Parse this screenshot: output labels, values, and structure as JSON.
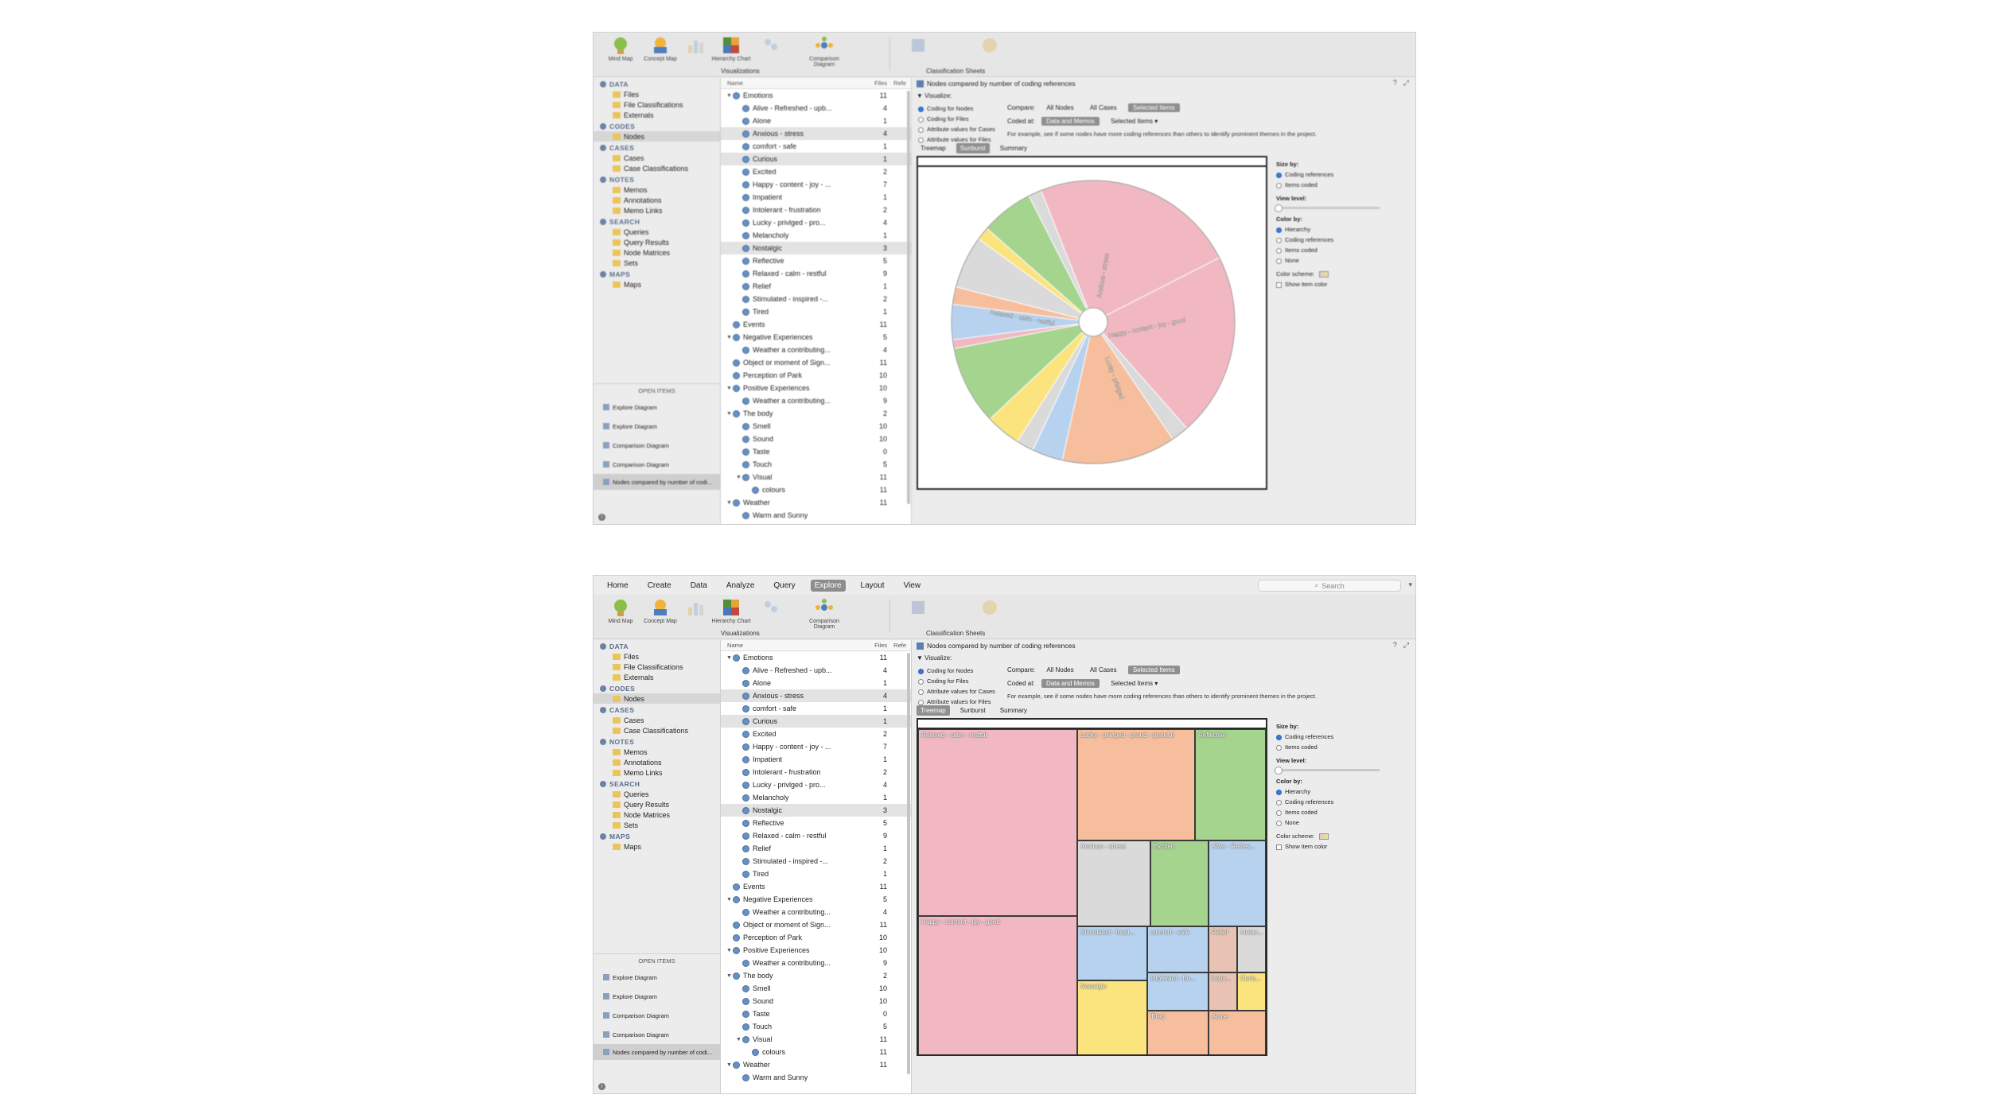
{
  "menu": [
    "Home",
    "Create",
    "Data",
    "Analyze",
    "Query",
    "Explore",
    "Layout",
    "View"
  ],
  "search_placeholder": "Search",
  "ribbon": {
    "buttons": [
      "Mind Map",
      "Concept Map",
      "Chart",
      "Hierarchy Chart",
      "Cluster Analysis",
      "Comparison Diagram"
    ],
    "group_visualizations": "Visualizations",
    "group_classification": "Classification Sheets"
  },
  "nav": {
    "data": {
      "title": "DATA",
      "items": [
        "Files",
        "File Classifications",
        "Externals"
      ]
    },
    "codes": {
      "title": "CODES",
      "items": [
        "Nodes"
      ]
    },
    "cases": {
      "title": "CASES",
      "items": [
        "Cases",
        "Case Classifications"
      ]
    },
    "notes": {
      "title": "NOTES",
      "items": [
        "Memos",
        "Annotations",
        "Memo Links"
      ]
    },
    "search": {
      "title": "SEARCH",
      "items": [
        "Queries",
        "Query Results",
        "Node Matrices",
        "Sets"
      ]
    },
    "maps": {
      "title": "MAPS",
      "items": [
        "Maps"
      ]
    }
  },
  "open_items": {
    "title": "OPEN ITEMS",
    "items": [
      "Explore Diagram",
      "Explore Diagram",
      "Comparison Diagram",
      "Comparison Diagram",
      "Nodes compared by number of codi..."
    ]
  },
  "list": {
    "col_name": "Name",
    "col_files": "Files",
    "col_refs": "Refe",
    "rows": [
      {
        "name": "Emotions",
        "files": "11",
        "refs": "",
        "level": 0,
        "tw": "▼"
      },
      {
        "name": "Alive - Refreshed - upb...",
        "files": "4",
        "refs": "",
        "level": 1
      },
      {
        "name": "Alone",
        "files": "1",
        "refs": "",
        "level": 1
      },
      {
        "name": "Anxious - stress",
        "files": "4",
        "refs": "",
        "level": 1,
        "sel": true
      },
      {
        "name": "comfort - safe",
        "files": "1",
        "refs": "",
        "level": 1
      },
      {
        "name": "Curious",
        "files": "1",
        "refs": "",
        "level": 1,
        "sel": true
      },
      {
        "name": "Excited",
        "files": "2",
        "refs": "",
        "level": 1
      },
      {
        "name": "Happy - content - joy - ...",
        "files": "7",
        "refs": "",
        "level": 1
      },
      {
        "name": "Impatient",
        "files": "1",
        "refs": "",
        "level": 1
      },
      {
        "name": "Intolerant - frustration",
        "files": "2",
        "refs": "",
        "level": 1
      },
      {
        "name": "Lucky - privlged - pro...",
        "files": "4",
        "refs": "",
        "level": 1
      },
      {
        "name": "Melancholy",
        "files": "1",
        "refs": "",
        "level": 1
      },
      {
        "name": "Nostalgic",
        "files": "3",
        "refs": "",
        "level": 1,
        "sel": true
      },
      {
        "name": "Reflective",
        "files": "5",
        "refs": "",
        "level": 1
      },
      {
        "name": "Relaxed - calm - restful",
        "files": "9",
        "refs": "",
        "level": 1
      },
      {
        "name": "Relief",
        "files": "1",
        "refs": "",
        "level": 1
      },
      {
        "name": "Stimulated - inspired -...",
        "files": "2",
        "refs": "",
        "level": 1
      },
      {
        "name": "Tired",
        "files": "1",
        "refs": "",
        "level": 1
      },
      {
        "name": "Events",
        "files": "11",
        "refs": "",
        "level": 0
      },
      {
        "name": "Negative Experiences",
        "files": "5",
        "refs": "",
        "level": 0,
        "tw": "▼"
      },
      {
        "name": "Weather a contributing...",
        "files": "4",
        "refs": "",
        "level": 1
      },
      {
        "name": "Object or moment of Sign...",
        "files": "11",
        "refs": "",
        "level": 0
      },
      {
        "name": "Perception of Park",
        "files": "10",
        "refs": "",
        "level": 0
      },
      {
        "name": "Positive Experiences",
        "files": "10",
        "refs": "",
        "level": 0,
        "tw": "▼"
      },
      {
        "name": "Weather a contributing...",
        "files": "9",
        "refs": "",
        "level": 1
      },
      {
        "name": "The body",
        "files": "2",
        "refs": "",
        "level": 0,
        "tw": "▼"
      },
      {
        "name": "Smell",
        "files": "10",
        "refs": "",
        "level": 1
      },
      {
        "name": "Sound",
        "files": "10",
        "refs": "",
        "level": 1
      },
      {
        "name": "Taste",
        "files": "0",
        "refs": "",
        "level": 1
      },
      {
        "name": "Touch",
        "files": "5",
        "refs": "",
        "level": 1
      },
      {
        "name": "Visual",
        "files": "11",
        "refs": "",
        "level": 1,
        "tw": "▼"
      },
      {
        "name": "colours",
        "files": "11",
        "refs": "",
        "level": 2
      },
      {
        "name": "Weather",
        "files": "11",
        "refs": "",
        "level": 0,
        "tw": "▼"
      },
      {
        "name": "Warm and Sunny",
        "files": "",
        "refs": "",
        "level": 1
      }
    ]
  },
  "detail": {
    "title": "Nodes compared by number of coding references",
    "visualize_label": "Visualize:",
    "options": [
      "Coding for Nodes",
      "Coding for Files",
      "Attribute values for Cases",
      "Attribute values for Files"
    ],
    "compare_label": "Compare:",
    "compare_opts": [
      "All Nodes",
      "All Cases",
      "Selected Items"
    ],
    "coded_at_label": "Coded at:",
    "coded_at_opts": [
      "Data and Memos",
      "Selected Items ▾"
    ],
    "hint": "For example, see if some nodes have more coding references than others to identify prominent themes in the project.",
    "tabs": [
      "Treemap",
      "Sunburst",
      "Summary"
    ]
  },
  "props": {
    "size_by": "Size by:",
    "size_opts": [
      "Coding references",
      "Items coded"
    ],
    "view_level": "View level:",
    "color_by": "Color by:",
    "color_opts": [
      "Hierarchy",
      "Coding references",
      "Items coded",
      "None"
    ],
    "color_scheme": "Color scheme:",
    "show_item_color": "Show item color"
  },
  "treemap": [
    {
      "label": "Relaxed - calm - restful",
      "color": "#f1b8c2"
    },
    {
      "label": "Happy - content - joy - good",
      "color": "#f1b8c2"
    },
    {
      "label": "Lucky - privlged - proud - grateful",
      "color": "#f6be9c"
    },
    {
      "label": "Reflective",
      "color": "#a5d48f"
    },
    {
      "label": "Anxious - stress",
      "color": "#dadada"
    },
    {
      "label": "Excited",
      "color": "#a5d48f"
    },
    {
      "label": "Alive - Refres...",
      "color": "#b6d2ef"
    },
    {
      "label": "Stimulated - inspi...",
      "color": "#b6d2ef"
    },
    {
      "label": "comfort - safe",
      "color": "#b6d2ef"
    },
    {
      "label": "Relief",
      "color": "#e8c3b3"
    },
    {
      "label": "Melan...",
      "color": "#dadada"
    },
    {
      "label": "Intolerant - fru...",
      "color": "#b6d2ef"
    },
    {
      "label": "Impa...",
      "color": "#e8c3b3"
    },
    {
      "label": "Curio...",
      "color": "#fbe37d"
    },
    {
      "label": "Nostalgic",
      "color": "#fbe37d"
    },
    {
      "label": "Tired",
      "color": "#f6be9c"
    },
    {
      "label": "Alone",
      "color": "#f6be9c"
    }
  ],
  "sunburst": {
    "labels": [
      "Relaxed - calm - restful",
      "Happy - content - joy - good",
      "Lucky - privlged",
      "Anxious - stress"
    ]
  }
}
